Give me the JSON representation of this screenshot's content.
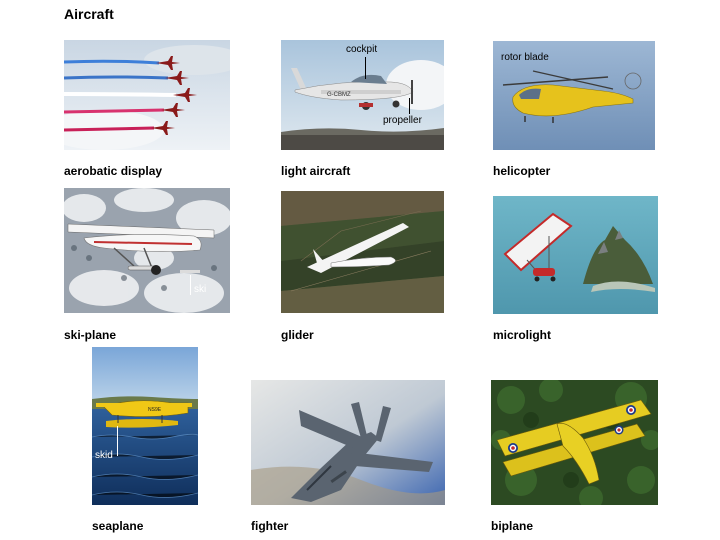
{
  "title": "Aircraft",
  "items": [
    {
      "caption": "aerobatic display"
    },
    {
      "caption": "light aircraft",
      "callouts": [
        "cockpit",
        "propeller"
      ]
    },
    {
      "caption": "helicopter",
      "callouts": [
        "rotor blade"
      ]
    },
    {
      "caption": "ski-plane",
      "callouts": [
        "ski"
      ]
    },
    {
      "caption": "glider"
    },
    {
      "caption": "microlight"
    },
    {
      "caption": "seaplane",
      "callouts": [
        "skid"
      ]
    },
    {
      "caption": "fighter"
    },
    {
      "caption": "biplane"
    }
  ]
}
